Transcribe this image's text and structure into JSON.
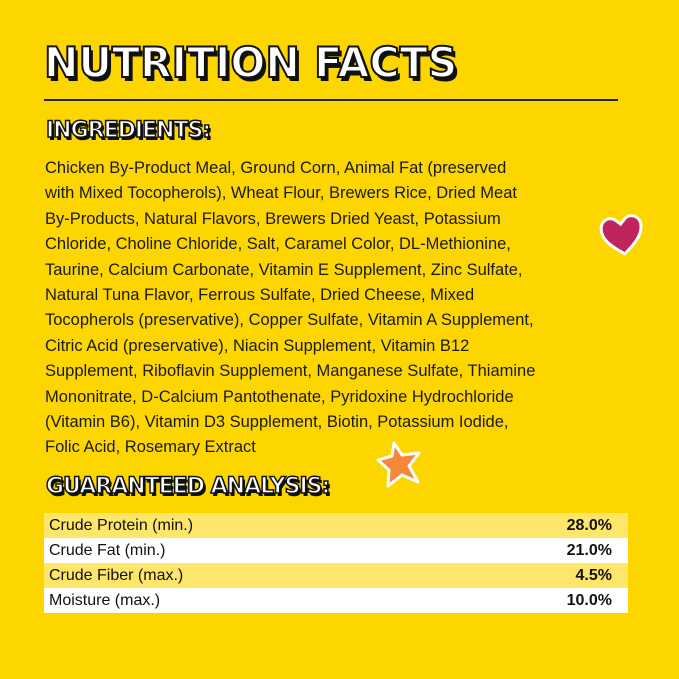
{
  "title": "NUTRITION FACTS",
  "ingredients": {
    "heading": "INGREDIENTS:",
    "lines": [
      "Chicken By-Product Meal, Ground Corn, Animal Fat (preserved",
      "with Mixed Tocopherols), Wheat Flour, Brewers Rice, Dried Meat",
      "By-Products, Natural Flavors, Brewers Dried Yeast, Potassium",
      "Chloride, Choline Chloride, Salt, Caramel Color, DL-Methionine,",
      "Taurine, Calcium Carbonate, Vitamin E Supplement, Zinc Sulfate,",
      "Natural Tuna Flavor, Ferrous Sulfate, Dried Cheese, Mixed",
      "Tocopherols (preservative), Copper Sulfate, Vitamin A Supplement,",
      "Citric Acid (preservative), Niacin Supplement, Vitamin B12",
      "Supplement, Riboflavin Supplement, Manganese Sulfate, Thiamine",
      "Mononitrate, D-Calcium Pantothenate, Pyridoxine Hydrochloride",
      "(Vitamin B6), Vitamin D3 Supplement, Biotin, Potassium Iodide,",
      "Folic Acid, Rosemary Extract"
    ]
  },
  "analysis": {
    "heading": "GUARANTEED ANALYSIS:",
    "rows": [
      {
        "label": "Crude Protein (min.)",
        "value": "28.0%"
      },
      {
        "label": "Crude Fat (min.)",
        "value": "21.0%"
      },
      {
        "label": "Crude Fiber (max.)",
        "value": "4.5%"
      },
      {
        "label": "Moisture (max.)",
        "value": "10.0%"
      }
    ]
  },
  "colors": {
    "background": "#fdd600",
    "heart": "#c0245c",
    "star": "#f5873a",
    "row_alt": "#fde66a"
  },
  "icons": [
    "heart-icon",
    "star-icon"
  ]
}
